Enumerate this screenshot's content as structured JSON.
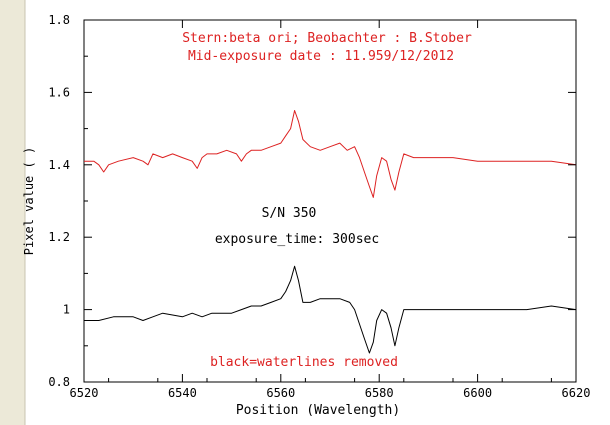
{
  "chart_data": {
    "type": "line",
    "title": "Stern:beta ori; Beobachter : B.Stober",
    "subtitle": "Mid-exposure date : 11.959/12/2012",
    "xlabel": "Position (Wavelength)",
    "ylabel": "Pixel value ( )",
    "xlim": [
      6520,
      6620
    ],
    "ylim": [
      0.8,
      1.8
    ],
    "x_ticks": [
      "6520",
      "6540",
      "6560",
      "6580",
      "6600",
      "6620"
    ],
    "y_ticks": [
      "0.8",
      "1",
      "1.2",
      "1.4",
      "1.6",
      "1.8"
    ],
    "grid": false,
    "annotations": {
      "snr": "S/N  350",
      "exposure": "exposure_time: 300sec",
      "note": "black=waterlines removed"
    },
    "colors": {
      "series_red": "#dd2222",
      "series_black": "#000000",
      "text_red": "#dd2222",
      "axis": "#000000",
      "left_panel": "#ece9d8"
    },
    "series": [
      {
        "color": "red",
        "x": [
          6520,
          6522,
          6523,
          6524,
          6525,
          6527,
          6530,
          6532,
          6533,
          6534,
          6536,
          6538,
          6540,
          6542,
          6543,
          6544,
          6545,
          6547,
          6549,
          6551,
          6552,
          6553,
          6554,
          6556,
          6558,
          6560,
          6561,
          6562,
          6562.8,
          6563.6,
          6564.5,
          6566,
          6568,
          6570,
          6572,
          6573.5,
          6575,
          6576,
          6577,
          6578,
          6578.8,
          6579.5,
          6580.5,
          6581.5,
          6582.4,
          6583.2,
          6584,
          6585,
          6587,
          6590,
          6595,
          6600,
          6605,
          6610,
          6615,
          6620
        ],
        "y": [
          1.41,
          1.41,
          1.4,
          1.38,
          1.4,
          1.41,
          1.42,
          1.41,
          1.4,
          1.43,
          1.42,
          1.43,
          1.42,
          1.41,
          1.39,
          1.42,
          1.43,
          1.43,
          1.44,
          1.43,
          1.41,
          1.43,
          1.44,
          1.44,
          1.45,
          1.46,
          1.48,
          1.5,
          1.55,
          1.52,
          1.47,
          1.45,
          1.44,
          1.45,
          1.46,
          1.44,
          1.45,
          1.42,
          1.38,
          1.34,
          1.31,
          1.37,
          1.42,
          1.41,
          1.36,
          1.33,
          1.38,
          1.43,
          1.42,
          1.42,
          1.42,
          1.41,
          1.41,
          1.41,
          1.41,
          1.4
        ]
      },
      {
        "color": "black",
        "x": [
          6520,
          6523,
          6526,
          6530,
          6532,
          6534,
          6536,
          6540,
          6542,
          6544,
          6546,
          6550,
          6552,
          6554,
          6556,
          6558,
          6560,
          6561,
          6562,
          6562.8,
          6563.6,
          6564.5,
          6566,
          6568,
          6570,
          6572,
          6574,
          6575,
          6576,
          6577,
          6578,
          6578.8,
          6579.5,
          6580.5,
          6581.5,
          6582.4,
          6583.2,
          6584,
          6585,
          6587,
          6590,
          6595,
          6600,
          6605,
          6610,
          6615,
          6620
        ],
        "y": [
          0.97,
          0.97,
          0.98,
          0.98,
          0.97,
          0.98,
          0.99,
          0.98,
          0.99,
          0.98,
          0.99,
          0.99,
          1.0,
          1.01,
          1.01,
          1.02,
          1.03,
          1.05,
          1.08,
          1.12,
          1.08,
          1.02,
          1.02,
          1.03,
          1.03,
          1.03,
          1.02,
          1.0,
          0.96,
          0.92,
          0.88,
          0.91,
          0.97,
          1.0,
          0.99,
          0.95,
          0.9,
          0.95,
          1.0,
          1.0,
          1.0,
          1.0,
          1.0,
          1.0,
          1.0,
          1.01,
          1.0
        ]
      }
    ]
  }
}
